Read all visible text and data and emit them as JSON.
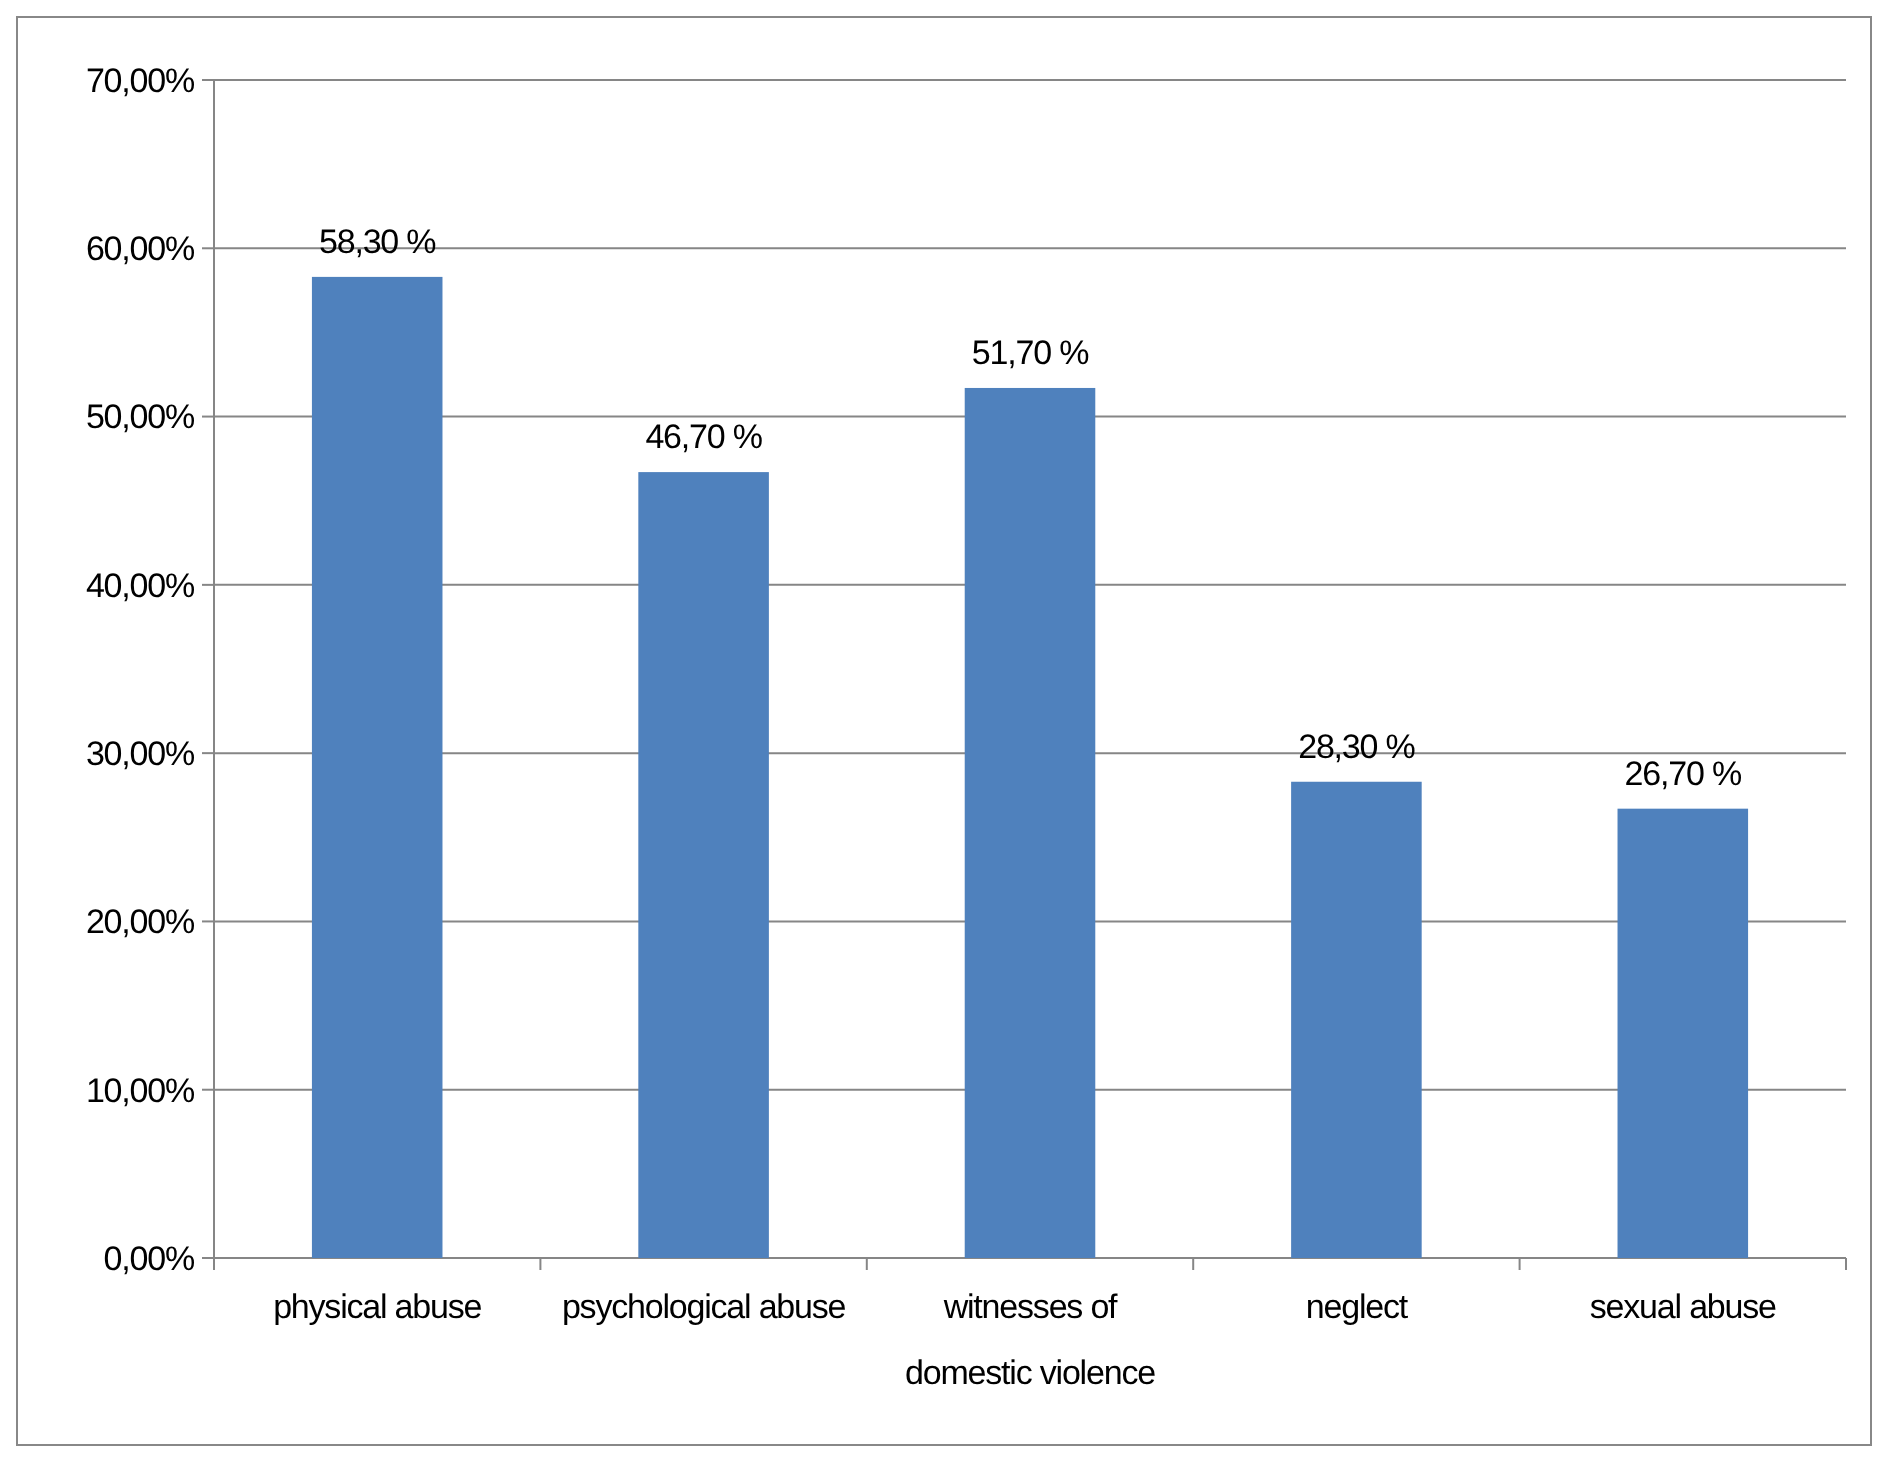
{
  "chart_data": {
    "type": "bar",
    "categories": [
      "physical abuse",
      "psychological abuse",
      "witnesses of domestic violence",
      "neglect",
      "sexual abuse"
    ],
    "values": [
      58.3,
      46.7,
      51.7,
      28.3,
      26.7
    ],
    "value_labels": [
      "58,30 %",
      "46,70 %",
      "51,70 %",
      "28,30 %",
      "26,70 %"
    ],
    "color": "#4f81bd",
    "ylim": [
      0,
      70
    ],
    "yticks": [
      {
        "value": 0,
        "label": "0,00%"
      },
      {
        "value": 10,
        "label": "10,00%"
      },
      {
        "value": 20,
        "label": "20,00%"
      },
      {
        "value": 30,
        "label": "30,00%"
      },
      {
        "value": 40,
        "label": "40,00%"
      },
      {
        "value": 50,
        "label": "50,00%"
      },
      {
        "value": 60,
        "label": "60,00%"
      },
      {
        "value": 70,
        "label": "70,00%"
      }
    ],
    "grid": "y"
  }
}
